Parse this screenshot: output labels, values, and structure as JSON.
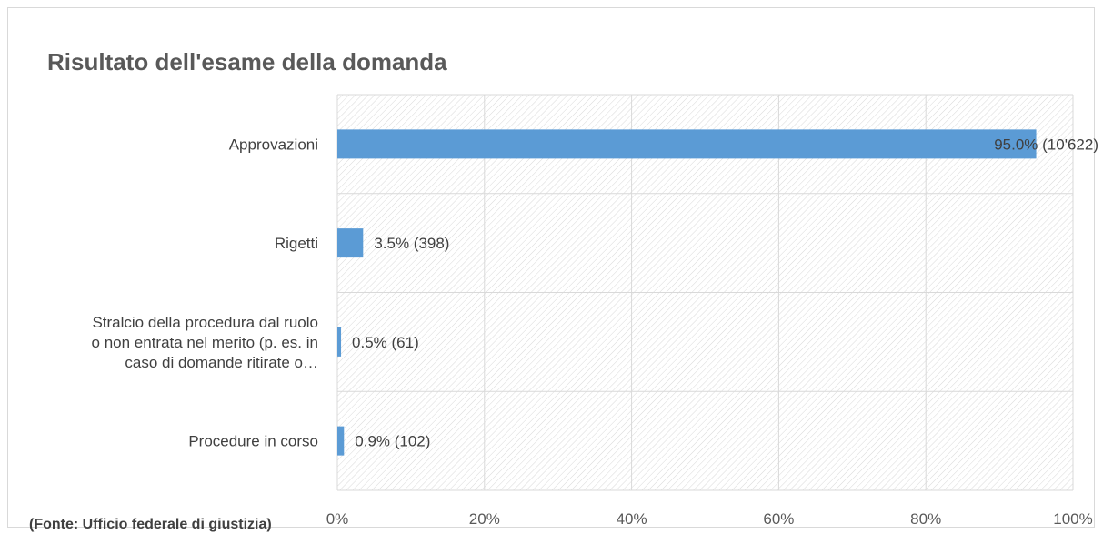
{
  "chart_data": {
    "type": "bar",
    "orientation": "horizontal",
    "title": "Risultato dell'esame della domanda",
    "categories": [
      "Approvazioni",
      "Rigetti",
      "Stralcio della procedura dal ruolo o non entrata nel merito (p. es. in caso di domande ritirate o…",
      "Procedure in corso"
    ],
    "category_label_lines": [
      [
        "Approvazioni"
      ],
      [
        "Rigetti"
      ],
      [
        "Stralcio della procedura dal ruolo",
        "o non entrata nel merito (p. es. in",
        "caso di domande ritirate o…"
      ],
      [
        "Procedure in corso"
      ]
    ],
    "values": [
      95.0,
      3.5,
      0.5,
      0.9
    ],
    "data_labels": [
      "95.0% (10'622)",
      "3.5% (398)",
      "0.5% (61)",
      "0.9% (102)"
    ],
    "xlim": [
      0,
      100
    ],
    "xticks": [
      0,
      20,
      40,
      60,
      80,
      100
    ],
    "xtick_labels": [
      "0%",
      "20%",
      "40%",
      "60%",
      "80%",
      "100%"
    ],
    "grid": true,
    "bar_color": "#5b9bd5",
    "grid_color": "#d9d9d9",
    "source": "(Fonte: Ufficio federale di giustizia)"
  }
}
